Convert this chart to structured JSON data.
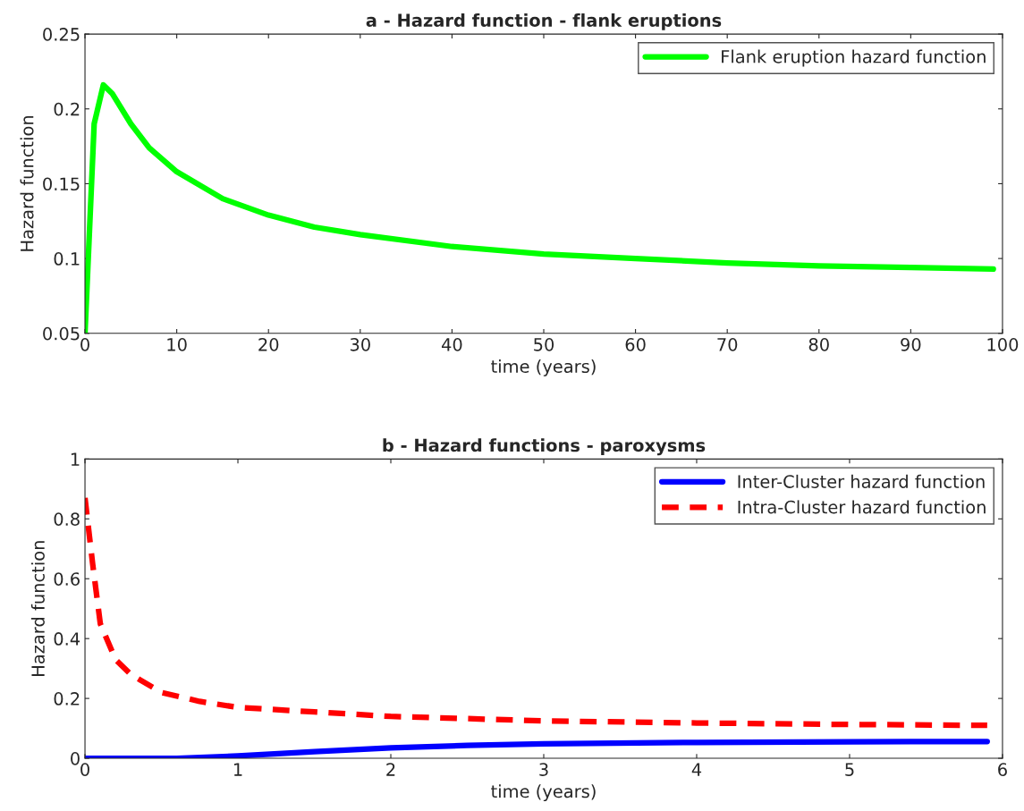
{
  "chart_data": [
    {
      "type": "line",
      "title": "a - Hazard function - flank eruptions",
      "xlabel": "time (years)",
      "ylabel": "Hazard function",
      "x": [
        0,
        1,
        2,
        3,
        5,
        7,
        10,
        15,
        20,
        25,
        30,
        40,
        50,
        60,
        70,
        80,
        90,
        99
      ],
      "series": [
        {
          "name": "Flank eruption hazard function",
          "color": "#00ff00",
          "line_style": "solid",
          "values": [
            0.05,
            0.19,
            0.216,
            0.21,
            0.19,
            0.174,
            0.158,
            0.14,
            0.129,
            0.121,
            0.116,
            0.108,
            0.103,
            0.1,
            0.097,
            0.095,
            0.094,
            0.093
          ]
        }
      ],
      "xlim": [
        0,
        100
      ],
      "xticks": [
        0,
        10,
        20,
        30,
        40,
        50,
        60,
        70,
        80,
        90,
        100
      ],
      "ylim": [
        0.05,
        0.25
      ],
      "yticks": [
        0.05,
        0.1,
        0.15,
        0.2,
        0.25
      ],
      "legend": "top right"
    },
    {
      "type": "line",
      "title": "b - Hazard functions - paroxysms",
      "xlabel": "time (years)",
      "ylabel": "Hazard function",
      "series": [
        {
          "name": "Inter-Cluster hazard function",
          "color": "#0000ff",
          "line_style": "solid",
          "x": [
            0,
            0.3,
            0.6,
            1,
            1.5,
            2,
            2.5,
            3,
            4,
            5,
            5.9
          ],
          "values": [
            0,
            0,
            0,
            0.008,
            0.022,
            0.035,
            0.043,
            0.048,
            0.053,
            0.055,
            0.056
          ]
        },
        {
          "name": "Intra-Cluster hazard function",
          "color": "#ff0000",
          "line_style": "dashed",
          "x": [
            0,
            0.05,
            0.1,
            0.2,
            0.3,
            0.5,
            0.75,
            1,
            1.5,
            2,
            3,
            4,
            5,
            5.9
          ],
          "values": [
            0.87,
            0.65,
            0.45,
            0.33,
            0.28,
            0.22,
            0.19,
            0.17,
            0.155,
            0.14,
            0.125,
            0.118,
            0.113,
            0.11
          ]
        }
      ],
      "xlim": [
        0,
        6
      ],
      "xticks": [
        0,
        1,
        2,
        3,
        4,
        5,
        6
      ],
      "ylim": [
        0,
        1
      ],
      "yticks": [
        0,
        0.2,
        0.4,
        0.6,
        0.8,
        1
      ],
      "legend": "top right"
    }
  ]
}
